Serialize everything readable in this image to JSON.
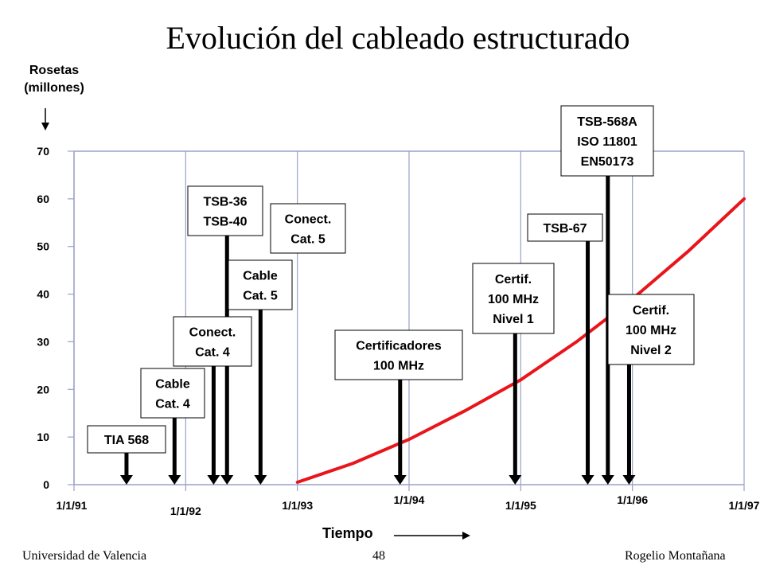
{
  "slide": {
    "title": "Evolución del cableado estructurado",
    "footer_left": "Universidad de Valencia",
    "footer_center": "48",
    "footer_right": "Rogelio Montañana"
  },
  "chart_data": {
    "type": "line",
    "ylabel": "Rosetas\n(millones)",
    "xlabel": "Tiempo",
    "ylim": [
      0,
      70
    ],
    "yticks": [
      0,
      10,
      20,
      30,
      40,
      50,
      60,
      70
    ],
    "xticks": [
      "1/1/91",
      "1/1/92",
      "1/1/93",
      "1/1/94",
      "1/1/95",
      "1/1/96",
      "1/1/97"
    ],
    "xlim": [
      1991,
      1997
    ],
    "grid": "vertical",
    "series": [
      {
        "color": "#e8151b",
        "x": [
          1993.0,
          1993.5,
          1994.0,
          1994.5,
          1995.0,
          1995.5,
          1996.0,
          1996.5,
          1997.0
        ],
        "y": [
          0.5,
          4.5,
          9.5,
          15.5,
          22,
          30,
          39,
          49,
          60
        ]
      }
    ],
    "annotations": [
      {
        "text": "TIA 568",
        "x": 1991.47
      },
      {
        "text": "Cable\nCat. 4",
        "x": 1991.9
      },
      {
        "text": "Conect.\nCat. 4",
        "x": 1992.25
      },
      {
        "text": "TSB-36\nTSB-40",
        "x": 1992.37
      },
      {
        "text": "Cable\nCat. 5",
        "x": 1992.67
      },
      {
        "text": "Conect.\nCat. 5",
        "x": 1193.0
      },
      {
        "text": "Certificadores\n100 MHz",
        "x": 1993.92
      },
      {
        "text": "Certif.\n100 MHz\nNivel 1",
        "x": 1994.95
      },
      {
        "text": "TSB-67",
        "x": 1995.6
      },
      {
        "text": "TSB-568A\nISO 11801\nEN50173",
        "x": 1995.78
      },
      {
        "text": "Certif.\n100 MHz\nNivel 2",
        "x": 1995.97
      }
    ]
  }
}
